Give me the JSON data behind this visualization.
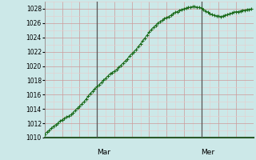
{
  "bg_color": "#cce8e8",
  "plot_bg_color": "#ddeedd",
  "grid_color_major": "#cc9999",
  "grid_color_minor": "#e8cccc",
  "line_color": "#1a6b1a",
  "marker_color": "#1a6b1a",
  "vline_color": "#555555",
  "bottom_spine_color": "#2a5a2a",
  "ylim": [
    1010,
    1029
  ],
  "yticks": [
    1010,
    1012,
    1014,
    1016,
    1018,
    1020,
    1022,
    1024,
    1026,
    1028
  ],
  "total_hours": 96,
  "vlines_x": [
    24,
    72
  ],
  "vline_labels": [
    "Mar",
    "Mer"
  ],
  "x_values": [
    0,
    1,
    2,
    3,
    4,
    5,
    6,
    7,
    8,
    9,
    10,
    11,
    12,
    13,
    14,
    15,
    16,
    17,
    18,
    19,
    20,
    21,
    22,
    23,
    24,
    25,
    26,
    27,
    28,
    29,
    30,
    31,
    32,
    33,
    34,
    35,
    36,
    37,
    38,
    39,
    40,
    41,
    42,
    43,
    44,
    45,
    46,
    47,
    48,
    49,
    50,
    51,
    52,
    53,
    54,
    55,
    56,
    57,
    58,
    59,
    60,
    61,
    62,
    63,
    64,
    65,
    66,
    67,
    68,
    69,
    70,
    71,
    72,
    73,
    74,
    75,
    76,
    77,
    78,
    79,
    80,
    81,
    82,
    83,
    84,
    85,
    86,
    87,
    88,
    89,
    90,
    91,
    92,
    93,
    94,
    95
  ],
  "y_values": [
    1010.5,
    1010.8,
    1011.0,
    1011.3,
    1011.6,
    1011.8,
    1012.0,
    1012.3,
    1012.5,
    1012.7,
    1012.9,
    1013.0,
    1013.2,
    1013.5,
    1013.8,
    1014.1,
    1014.4,
    1014.7,
    1015.0,
    1015.4,
    1015.8,
    1016.2,
    1016.5,
    1016.8,
    1017.1,
    1017.4,
    1017.7,
    1018.0,
    1018.3,
    1018.6,
    1018.9,
    1019.1,
    1019.3,
    1019.5,
    1019.8,
    1020.1,
    1020.4,
    1020.7,
    1021.0,
    1021.4,
    1021.7,
    1022.0,
    1022.3,
    1022.7,
    1023.1,
    1023.5,
    1023.9,
    1024.3,
    1024.7,
    1025.1,
    1025.4,
    1025.7,
    1026.0,
    1026.2,
    1026.4,
    1026.6,
    1026.8,
    1026.9,
    1027.1,
    1027.3,
    1027.5,
    1027.6,
    1027.8,
    1027.9,
    1028.0,
    1028.1,
    1028.2,
    1028.2,
    1028.3,
    1028.3,
    1028.2,
    1028.2,
    1028.1,
    1027.9,
    1027.7,
    1027.5,
    1027.3,
    1027.2,
    1027.1,
    1027.0,
    1027.0,
    1026.9,
    1027.0,
    1027.1,
    1027.2,
    1027.3,
    1027.4,
    1027.5,
    1027.6,
    1027.6,
    1027.7,
    1027.8,
    1027.8,
    1027.9,
    1027.9,
    1028.0
  ]
}
